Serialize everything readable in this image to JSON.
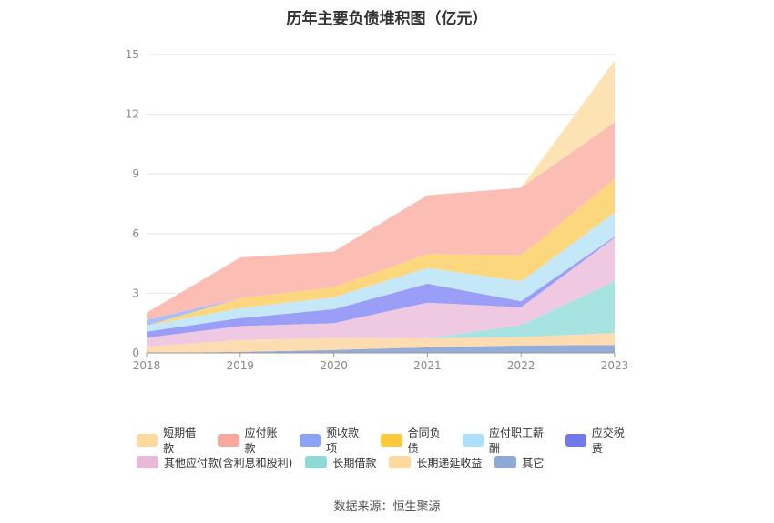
{
  "chart_data": {
    "type": "area",
    "title": "历年主要负债堆积图（亿元）",
    "x": [
      "2018",
      "2019",
      "2020",
      "2021",
      "2022",
      "2023"
    ],
    "ylim": [
      0,
      15
    ],
    "yticks": [
      0,
      3,
      6,
      9,
      12,
      15
    ],
    "stacked": true,
    "grid": true,
    "legend_position": "bottom",
    "series": [
      {
        "name": "其它",
        "color": "#94add8",
        "values": [
          0.02,
          0.05,
          0.15,
          0.28,
          0.38,
          0.4
        ]
      },
      {
        "name": "长期递延收益",
        "color": "#fcdcb0",
        "values": [
          0.3,
          0.6,
          0.6,
          0.45,
          0.42,
          0.6
        ]
      },
      {
        "name": "长期借款",
        "color": "#a7e3e0",
        "values": [
          0.0,
          0.0,
          0.0,
          0.0,
          0.6,
          2.6
        ]
      },
      {
        "name": "其他应付款(含利息和股利)",
        "color": "#efc9e2",
        "values": [
          0.45,
          0.7,
          0.75,
          1.8,
          0.9,
          2.2
        ]
      },
      {
        "name": "应交税费",
        "color": "#9b9ef6",
        "values": [
          0.3,
          0.4,
          0.7,
          0.95,
          0.3,
          0.05
        ]
      },
      {
        "name": "应付职工薪酬",
        "color": "#c4e8f8",
        "values": [
          0.3,
          0.5,
          0.6,
          0.8,
          1.0,
          1.2
        ]
      },
      {
        "name": "合同负债",
        "color": "#fdd77e",
        "values": [
          0.0,
          0.5,
          0.5,
          0.7,
          1.3,
          1.7
        ]
      },
      {
        "name": "预收款项",
        "color": "#a9c0f7",
        "values": [
          0.3,
          0.0,
          0.0,
          0.0,
          0.0,
          0.0
        ]
      },
      {
        "name": "应付账款",
        "color": "#fcbdb5",
        "values": [
          0.35,
          2.05,
          1.8,
          2.95,
          3.4,
          2.85
        ]
      },
      {
        "name": "短期借款",
        "color": "#fde3b4",
        "values": [
          0.0,
          0.0,
          0.0,
          0.0,
          0.0,
          3.1
        ]
      }
    ]
  },
  "legend": {
    "row1": [
      {
        "label": "短期借款",
        "color": "#fdd9a0"
      },
      {
        "label": "应付账款",
        "color": "#f9a99c"
      },
      {
        "label": "预收款项",
        "color": "#8aa3f6"
      },
      {
        "label": "合同负债",
        "color": "#fcc83c"
      },
      {
        "label": "应付职工薪酬",
        "color": "#ade0f8"
      },
      {
        "label": "应交税费",
        "color": "#7279ec"
      }
    ],
    "row2": [
      {
        "label": "其他应付款(含利息和股利)",
        "color": "#e8b9d9"
      },
      {
        "label": "长期借款",
        "color": "#8ed9d6"
      },
      {
        "label": "长期递延收益",
        "color": "#fdd9a0"
      },
      {
        "label": "其它",
        "color": "#8fa9d6"
      }
    ]
  },
  "source": "数据来源：恒生聚源"
}
